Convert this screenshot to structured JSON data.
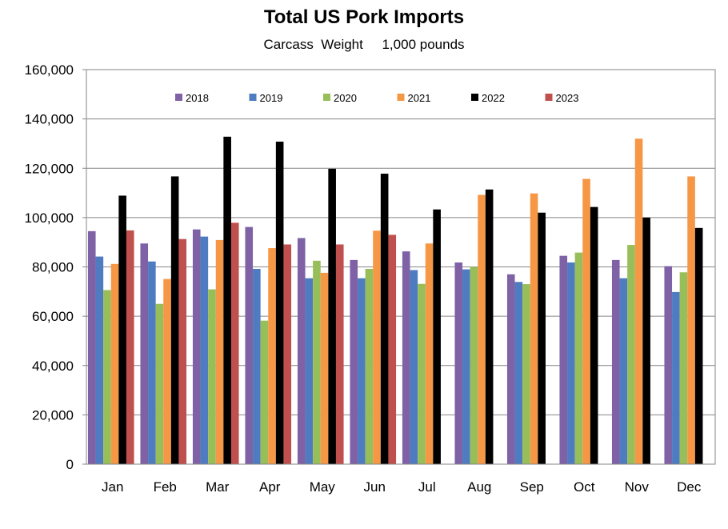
{
  "chart_data": {
    "type": "bar",
    "title": "Total US Pork Imports",
    "subtitle": "Carcass  Weight     1,000 pounds",
    "xlabel": "",
    "ylabel": "",
    "ylim": [
      0,
      160000
    ],
    "yticks": [
      0,
      20000,
      40000,
      60000,
      80000,
      100000,
      120000,
      140000,
      160000
    ],
    "ytick_labels": [
      "0",
      "20,000",
      "40,000",
      "60,000",
      "80,000",
      "100,000",
      "120,000",
      "140,000",
      "160,000"
    ],
    "grid": true,
    "legend_position": "top-inside",
    "categories": [
      "Jan",
      "Feb",
      "Mar",
      "Apr",
      "May",
      "Jun",
      "Jul",
      "Aug",
      "Sep",
      "Oct",
      "Nov",
      "Dec"
    ],
    "series": [
      {
        "name": "2018",
        "color": "#7F62A6",
        "values": [
          94500,
          89500,
          95200,
          96200,
          91700,
          82800,
          86300,
          81800,
          77000,
          84500,
          82800,
          80300
        ]
      },
      {
        "name": "2019",
        "color": "#4F7CC1",
        "values": [
          84200,
          82200,
          92300,
          79200,
          75400,
          75400,
          78700,
          79000,
          73900,
          81800,
          75400,
          69800
        ]
      },
      {
        "name": "2020",
        "color": "#97BE58",
        "values": [
          70600,
          65000,
          70900,
          58200,
          82500,
          79200,
          73100,
          80000,
          73000,
          85800,
          88900,
          77800
        ]
      },
      {
        "name": "2021",
        "color": "#F69745",
        "values": [
          81200,
          75100,
          90900,
          87600,
          77600,
          94700,
          89500,
          109200,
          109800,
          115700,
          132000,
          116700
        ]
      },
      {
        "name": "2022",
        "color": "#000000",
        "values": [
          108900,
          116700,
          132800,
          130800,
          119800,
          117800,
          103300,
          111400,
          102000,
          104300,
          100000,
          95800
        ]
      },
      {
        "name": "2023",
        "color": "#C0504D",
        "values": [
          94800,
          91300,
          97900,
          89100,
          89100,
          93000,
          null,
          null,
          null,
          null,
          null,
          null
        ]
      }
    ]
  }
}
